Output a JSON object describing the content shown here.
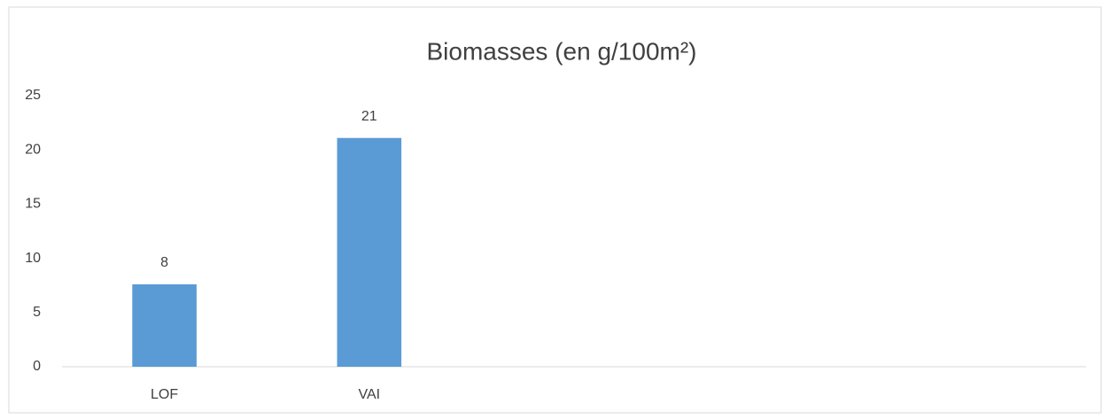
{
  "chart_data": {
    "type": "bar",
    "title": "Biomasses (en g/100m²)",
    "categories": [
      "LOF",
      "VAI",
      null,
      null,
      null
    ],
    "values": [
      7.6,
      21.1,
      null,
      null,
      null
    ],
    "value_labels": [
      "8",
      "21",
      null,
      null,
      null
    ],
    "color": "#5b9bd5",
    "ylim": [
      0,
      25
    ],
    "yticks": [
      0,
      5,
      10,
      15,
      20,
      25
    ],
    "grid": false
  }
}
